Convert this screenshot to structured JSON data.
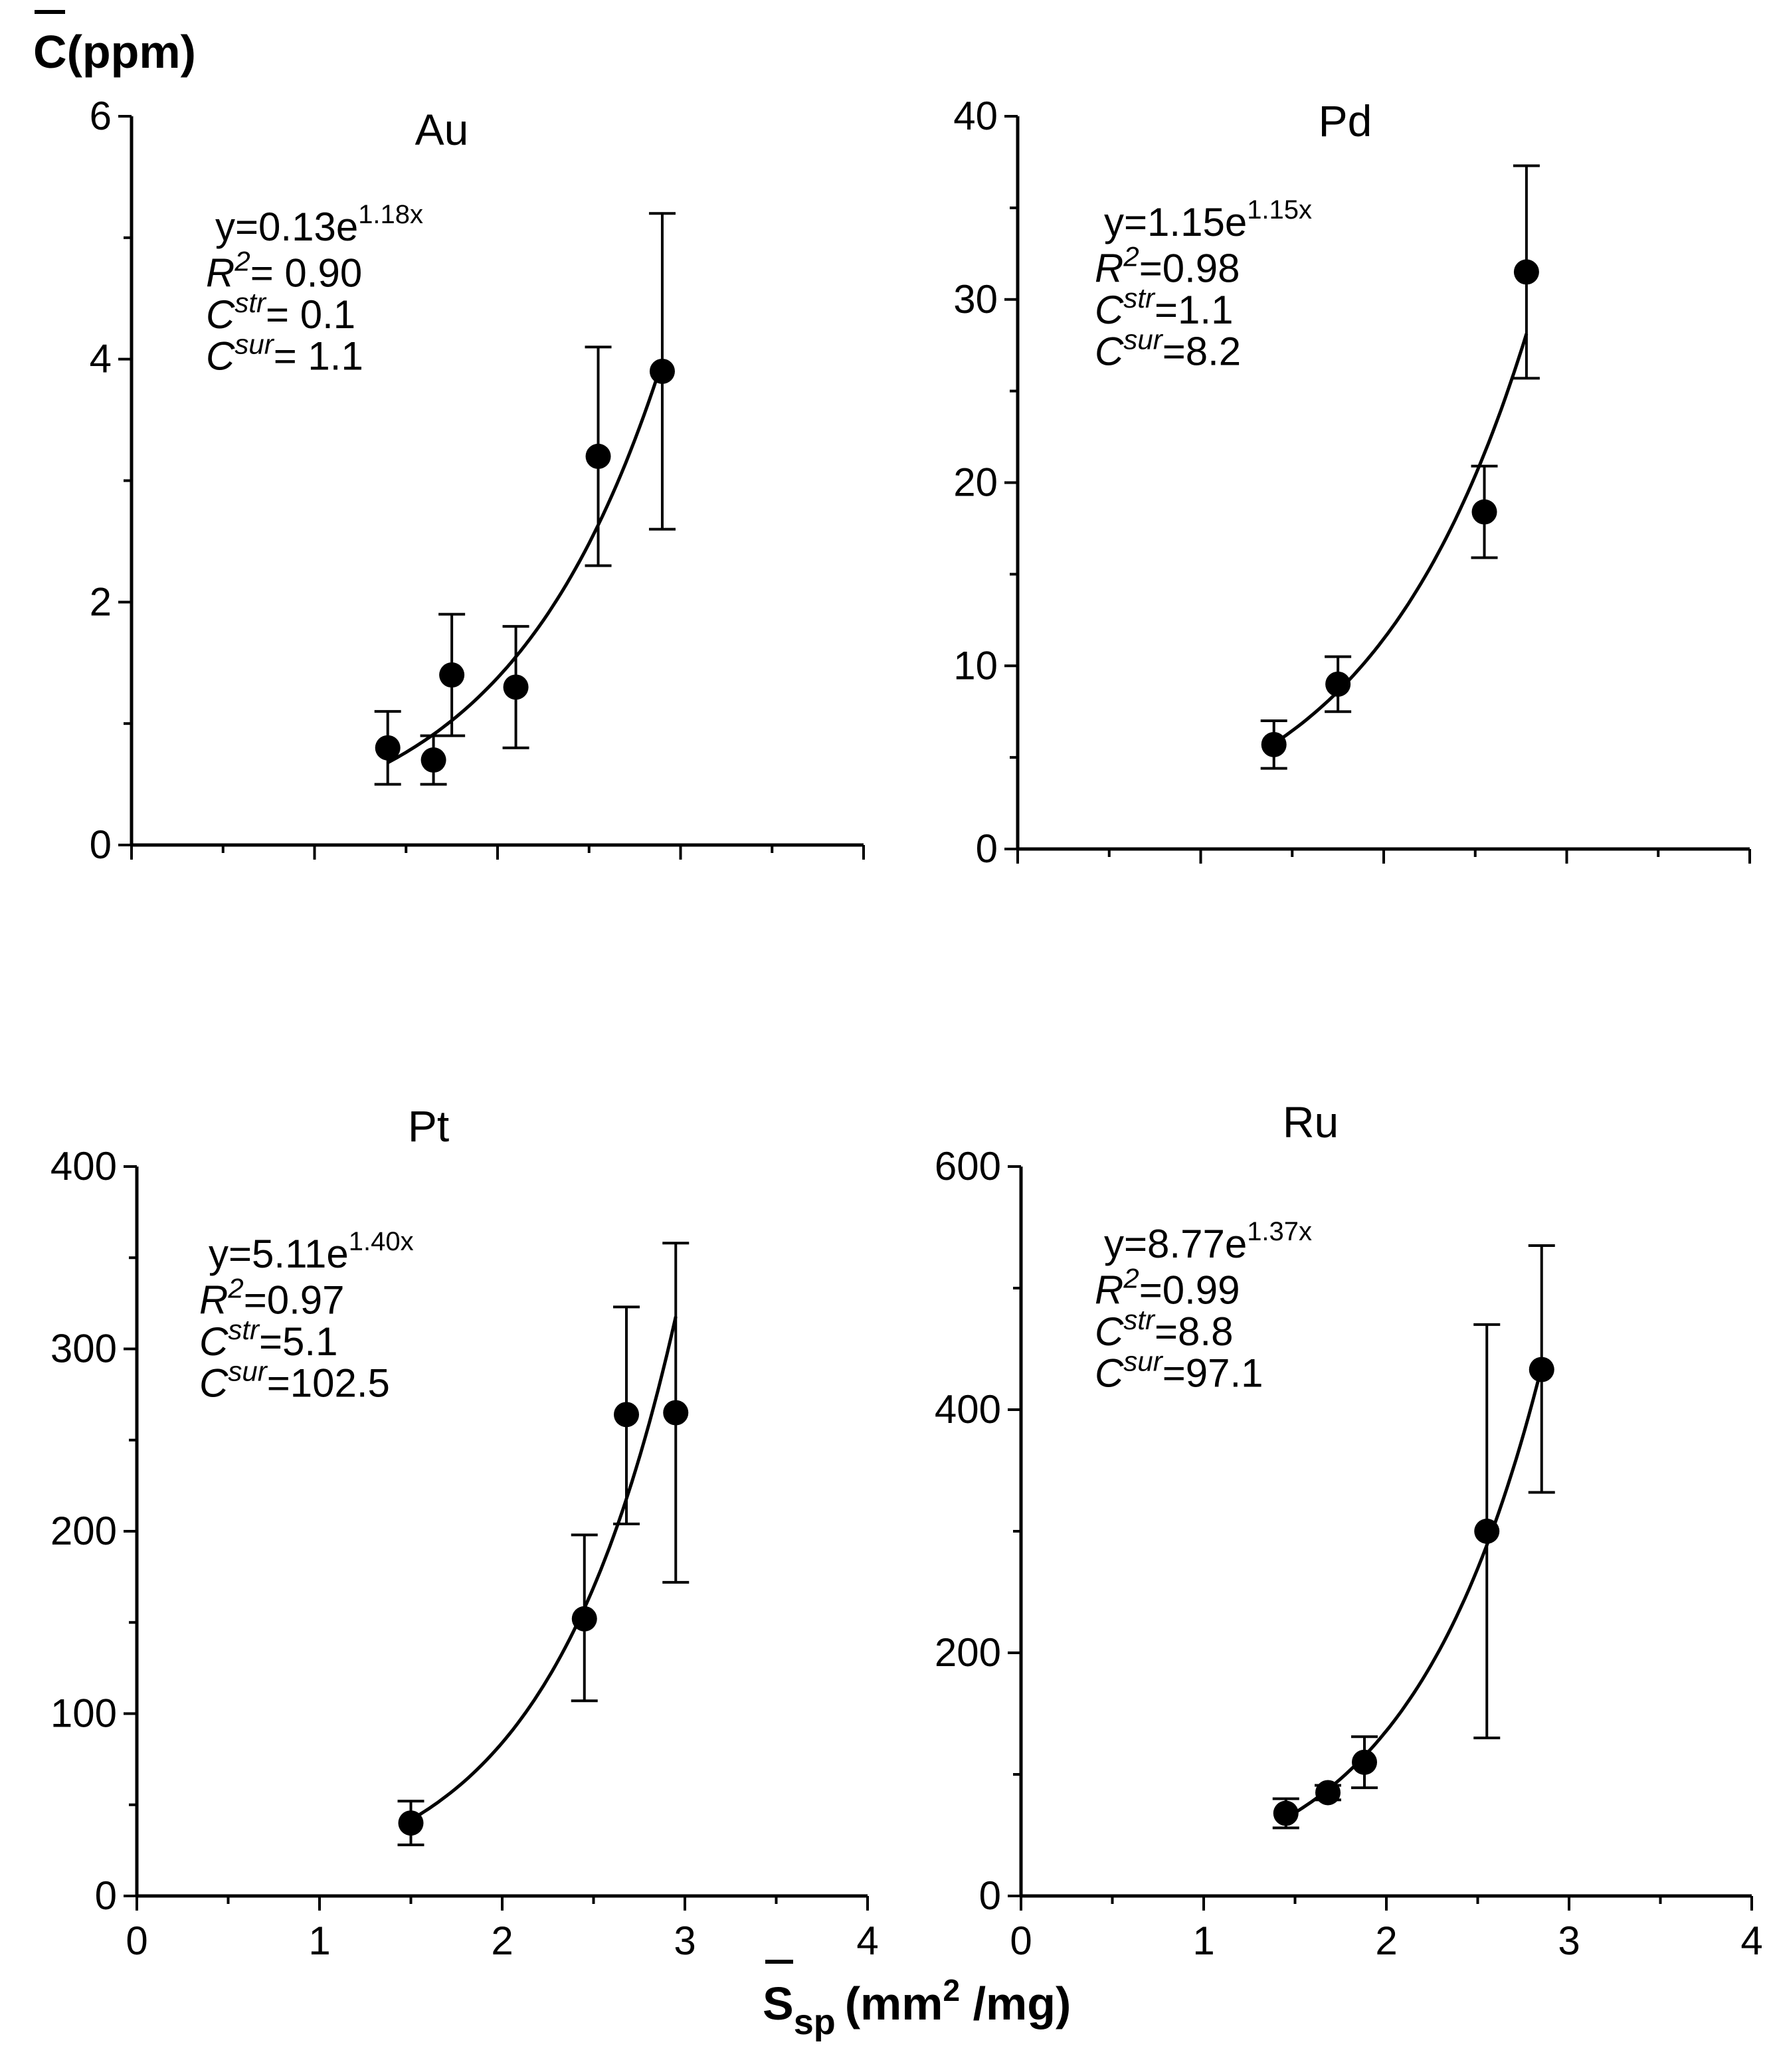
{
  "figure": {
    "ylabel": {
      "symbol": "C",
      "unit": "(ppm)"
    },
    "xlabel": {
      "symbol": "S",
      "subscript": "sp",
      "unit_prefix": "(mm",
      "superscript": "2",
      "unit_suffix": " /mg)"
    }
  },
  "chart_data": [
    {
      "type": "scatter",
      "title": "Au",
      "xlim": [
        0,
        4
      ],
      "ylim": [
        0,
        6
      ],
      "xticks": [
        0,
        1,
        2,
        3,
        4
      ],
      "yticks": [
        0,
        2,
        4,
        6
      ],
      "show_x_tick_labels": false,
      "points": [
        {
          "x": 1.4,
          "y": 0.8,
          "err_low": 0.5,
          "err_high": 1.1
        },
        {
          "x": 1.65,
          "y": 0.7,
          "err_low": 0.5,
          "err_high": 0.9
        },
        {
          "x": 1.75,
          "y": 1.4,
          "err_low": 0.9,
          "err_high": 1.9
        },
        {
          "x": 2.1,
          "y": 1.3,
          "err_low": 0.8,
          "err_high": 1.8
        },
        {
          "x": 2.55,
          "y": 3.2,
          "err_low": 2.3,
          "err_high": 4.1
        },
        {
          "x": 2.9,
          "y": 3.9,
          "err_low": 2.6,
          "err_high": 5.2
        }
      ],
      "fit": {
        "a": 0.13,
        "b": 1.18,
        "x_from": 1.4,
        "x_to": 2.9
      },
      "annotation": {
        "eq_prefix": "y=0.13e",
        "eq_exp": "1.18x",
        "r2_label": "R",
        "r2_sup": "2",
        "r2_value": "= 0.90",
        "cstr_label": "C",
        "cstr_sup": "str",
        "cstr_value": "= 0.1",
        "csur_label": "C",
        "csur_sup": "sur",
        "csur_value": "= 1.1"
      }
    },
    {
      "type": "scatter",
      "title": "Pd",
      "xlim": [
        0,
        4
      ],
      "ylim": [
        0,
        40
      ],
      "xticks": [
        0,
        1,
        2,
        3,
        4
      ],
      "yticks": [
        0,
        10,
        20,
        30,
        40
      ],
      "show_x_tick_labels": false,
      "points": [
        {
          "x": 1.4,
          "y": 5.7,
          "err_low": 4.4,
          "err_high": 7.0
        },
        {
          "x": 1.75,
          "y": 9.0,
          "err_low": 7.5,
          "err_high": 10.5
        },
        {
          "x": 2.55,
          "y": 18.4,
          "err_low": 15.9,
          "err_high": 20.9
        },
        {
          "x": 2.78,
          "y": 31.5,
          "err_low": 25.7,
          "err_high": 37.3
        }
      ],
      "fit": {
        "a": 1.15,
        "b": 1.15,
        "x_from": 1.4,
        "x_to": 2.78
      },
      "annotation": {
        "eq_prefix": "y=1.15e",
        "eq_exp": "1.15x",
        "r2_label": "R",
        "r2_sup": "2",
        "r2_value": "=0.98",
        "cstr_label": "C",
        "cstr_sup": "str",
        "cstr_value": "=1.1",
        "csur_label": "C",
        "csur_sup": "sur",
        "csur_value": "=8.2"
      }
    },
    {
      "type": "scatter",
      "title": "Pt",
      "xlim": [
        0,
        4
      ],
      "ylim": [
        0,
        400
      ],
      "xticks": [
        0,
        1,
        2,
        3,
        4
      ],
      "yticks": [
        0,
        100,
        200,
        300,
        400
      ],
      "show_x_tick_labels": true,
      "points": [
        {
          "x": 1.5,
          "y": 40,
          "err_low": 28,
          "err_high": 52
        },
        {
          "x": 2.45,
          "y": 152,
          "err_low": 107,
          "err_high": 198
        },
        {
          "x": 2.68,
          "y": 264,
          "err_low": 204,
          "err_high": 323
        },
        {
          "x": 2.95,
          "y": 265,
          "err_low": 172,
          "err_high": 358
        }
      ],
      "fit": {
        "a": 5.11,
        "b": 1.4,
        "x_from": 1.5,
        "x_to": 2.95
      },
      "annotation": {
        "eq_prefix": "y=5.11e",
        "eq_exp": "1.40x",
        "r2_label": "R",
        "r2_sup": "2",
        "r2_value": "=0.97",
        "cstr_label": "C",
        "cstr_sup": "str",
        "cstr_value": "=5.1",
        "csur_label": "C",
        "csur_sup": "sur",
        "csur_value": "=102.5"
      }
    },
    {
      "type": "scatter",
      "title": "Ru",
      "xlim": [
        0,
        4
      ],
      "ylim": [
        0,
        600
      ],
      "xticks": [
        0,
        1,
        2,
        3,
        4
      ],
      "yticks": [
        0,
        200,
        400,
        600
      ],
      "show_x_tick_labels": true,
      "points": [
        {
          "x": 1.45,
          "y": 68,
          "err_low": 56,
          "err_high": 80
        },
        {
          "x": 1.68,
          "y": 85,
          "err_low": 79,
          "err_high": 91
        },
        {
          "x": 1.88,
          "y": 110,
          "err_low": 89,
          "err_high": 131
        },
        {
          "x": 2.55,
          "y": 300,
          "err_low": 130,
          "err_high": 470
        },
        {
          "x": 2.85,
          "y": 433,
          "err_low": 332,
          "err_high": 535
        }
      ],
      "fit": {
        "a": 8.77,
        "b": 1.37,
        "x_from": 1.45,
        "x_to": 2.85
      },
      "annotation": {
        "eq_prefix": "y=8.77e",
        "eq_exp": "1.37x",
        "r2_label": "R",
        "r2_sup": "2",
        "r2_value": "=0.99",
        "cstr_label": "C",
        "cstr_sup": "str",
        "cstr_value": "=8.8",
        "csur_label": "C",
        "csur_sup": "sur",
        "csur_value": "=97.1"
      }
    }
  ]
}
